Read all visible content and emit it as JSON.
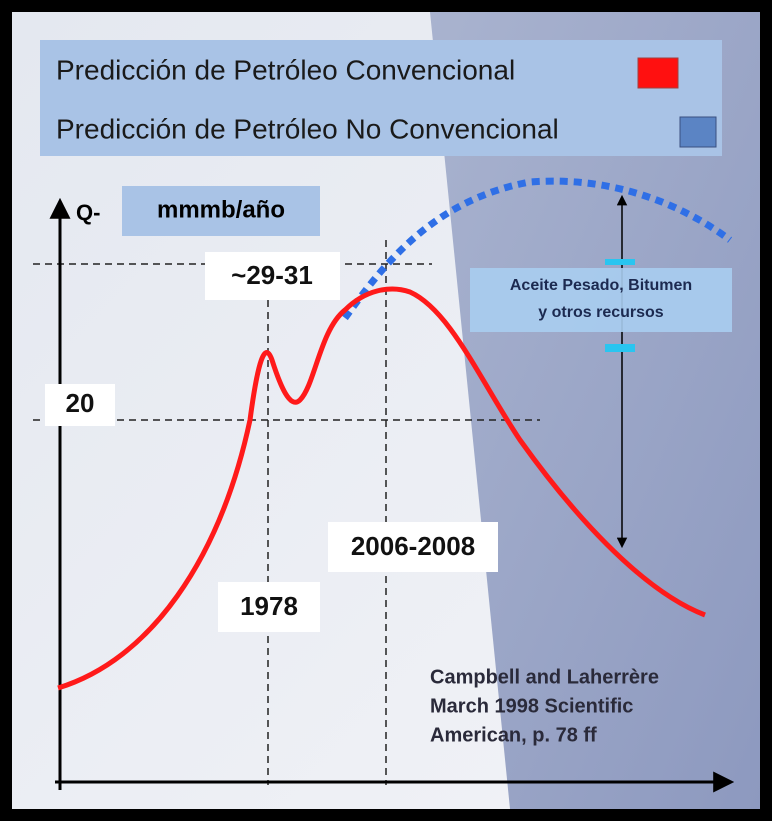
{
  "legend": [
    {
      "label": "Predicción de Petróleo Convencional"
    },
    {
      "label": "Predicción de Petróleo No Convencional"
    }
  ],
  "axis": {
    "q": "Q-",
    "unit": "mmmb/año"
  },
  "labels": {
    "peak": "~29-31",
    "level": "20",
    "year1": "1978",
    "year2": "2006-2008"
  },
  "annotation": [
    "Aceite Pesado, Bitumen",
    "y otros recursos"
  ],
  "citation": [
    "Campbell and Laherrère",
    "March 1998 Scientific",
    "American, p. 78 ff"
  ]
}
